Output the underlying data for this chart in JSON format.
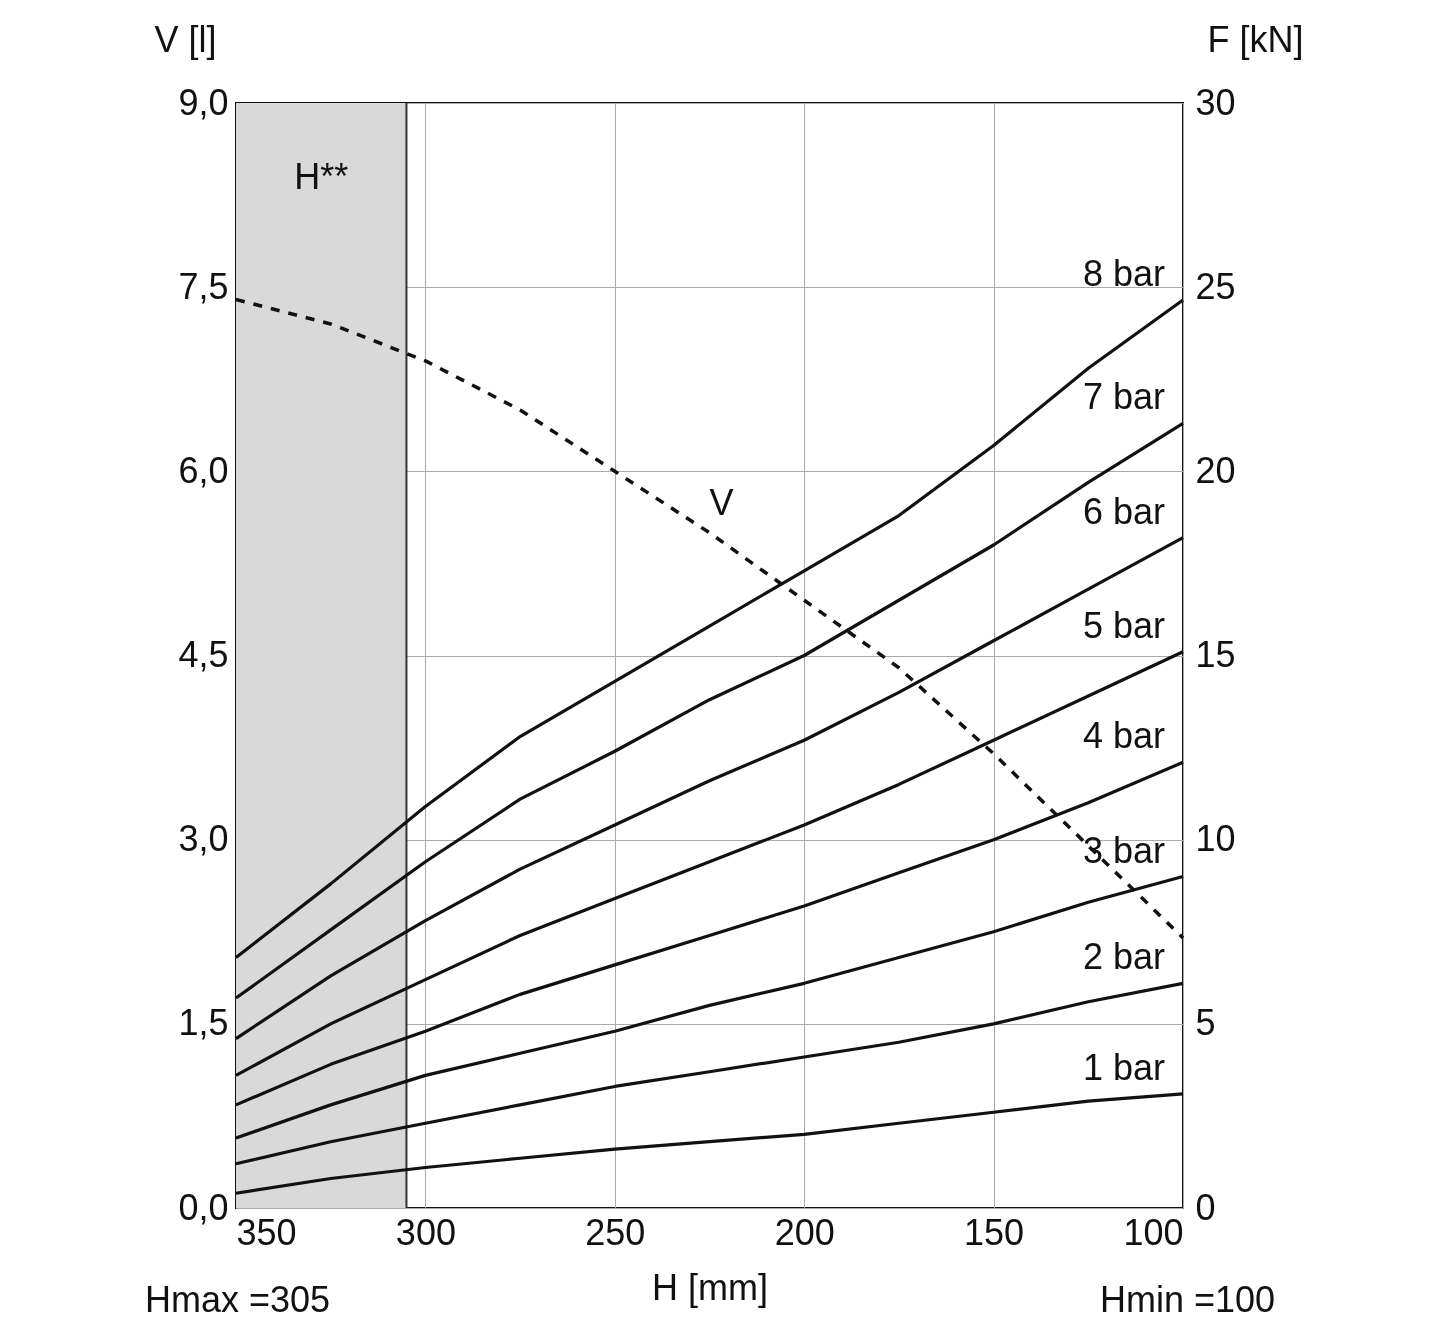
{
  "chart_data": {
    "type": "line",
    "xlabel": "H [mm]",
    "ylabel": "V [l]",
    "y2label": "F [kN]",
    "xlim": [
      350,
      100
    ],
    "xticks": [
      350,
      300,
      250,
      200,
      150,
      100
    ],
    "ylim": [
      0,
      9
    ],
    "yticks": [
      {
        "value": 0,
        "label": "0,0"
      },
      {
        "value": 1.5,
        "label": "1,5"
      },
      {
        "value": 3,
        "label": "3,0"
      },
      {
        "value": 4.5,
        "label": "4,5"
      },
      {
        "value": 6,
        "label": "6,0"
      },
      {
        "value": 7.5,
        "label": "7,5"
      },
      {
        "value": 9,
        "label": "9,0"
      }
    ],
    "y2lim": [
      0,
      30
    ],
    "y2ticks": [
      0,
      5,
      10,
      15,
      20,
      25,
      30
    ],
    "x": [
      350,
      325,
      300,
      275,
      250,
      225,
      200,
      175,
      150,
      125,
      100
    ],
    "series": [
      {
        "name": "V",
        "color": "#111111",
        "line_style": "dashed",
        "values": [
          7.4,
          7.2,
          6.9,
          6.5,
          6.0,
          5.5,
          4.95,
          4.4,
          3.7,
          2.95,
          2.2
        ]
      },
      {
        "name": "8 bar",
        "color": "#111111",
        "axis": "y2",
        "values": [
          6.8,
          8.8,
          10.9,
          12.8,
          14.3,
          15.8,
          17.3,
          18.8,
          20.7,
          22.8,
          24.65
        ]
      },
      {
        "name": "7 bar",
        "color": "#111111",
        "axis": "y2",
        "values": [
          5.7,
          7.55,
          9.4,
          11.1,
          12.4,
          13.8,
          15.0,
          16.5,
          18.0,
          19.7,
          21.3
        ]
      },
      {
        "name": "6 bar",
        "color": "#111111",
        "axis": "y2",
        "values": [
          4.6,
          6.3,
          7.8,
          9.2,
          10.4,
          11.6,
          12.7,
          14.0,
          15.4,
          16.8,
          18.2
        ]
      },
      {
        "name": "5 bar",
        "color": "#111111",
        "axis": "y2",
        "values": [
          3.6,
          5.0,
          6.2,
          7.4,
          8.4,
          9.4,
          10.4,
          11.5,
          12.7,
          13.9,
          15.1
        ]
      },
      {
        "name": "4 bar",
        "color": "#111111",
        "axis": "y2",
        "values": [
          2.8,
          3.9,
          4.8,
          5.8,
          6.6,
          7.4,
          8.2,
          9.1,
          10.0,
          11.0,
          12.1
        ]
      },
      {
        "name": "3 bar",
        "color": "#111111",
        "axis": "y2",
        "values": [
          1.9,
          2.8,
          3.6,
          4.2,
          4.8,
          5.5,
          6.1,
          6.8,
          7.5,
          8.3,
          9.0
        ]
      },
      {
        "name": "2 bar",
        "color": "#111111",
        "axis": "y2",
        "values": [
          1.2,
          1.8,
          2.3,
          2.8,
          3.3,
          3.7,
          4.1,
          4.5,
          5.0,
          5.6,
          6.1
        ]
      },
      {
        "name": "1 bar",
        "color": "#111111",
        "axis": "y2",
        "values": [
          0.4,
          0.8,
          1.1,
          1.35,
          1.6,
          1.8,
          2.0,
          2.3,
          2.6,
          2.9,
          3.1
        ]
      }
    ],
    "bands": [
      {
        "axis": "x",
        "from": 350,
        "to": 305,
        "label": "H**",
        "color": "#d9d9d9"
      }
    ],
    "ref_lines": [
      {
        "axis": "x",
        "value": 305,
        "color": "#333333"
      }
    ],
    "annotations": [
      "Hmax =305",
      "Hmin =100"
    ],
    "grid": true,
    "marker": "none",
    "line_style": "solid"
  }
}
